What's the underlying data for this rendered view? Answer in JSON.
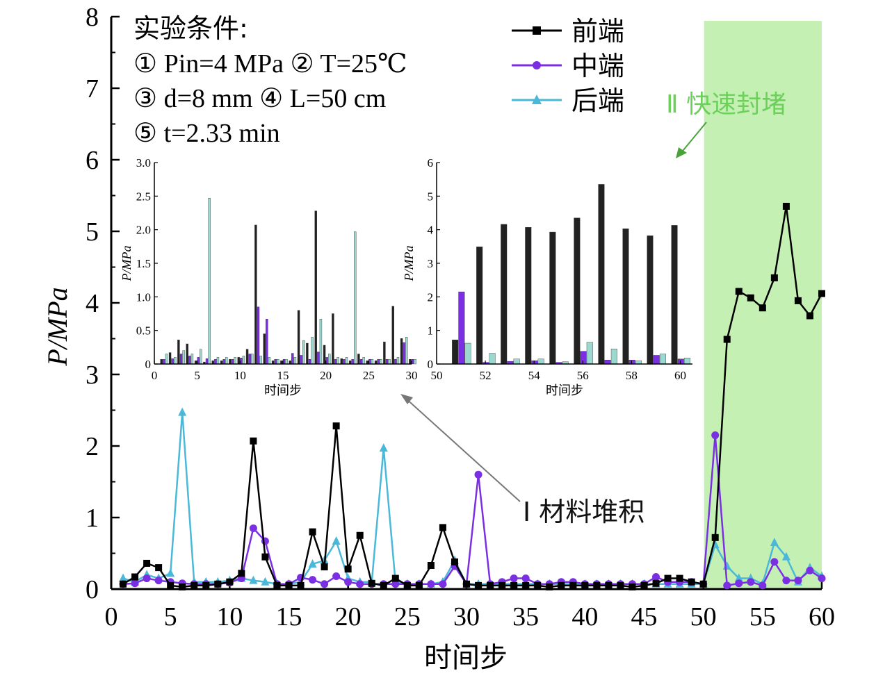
{
  "chart_data": [
    {
      "type": "line",
      "name": "main",
      "x": [
        1,
        2,
        3,
        4,
        5,
        6,
        7,
        8,
        9,
        10,
        11,
        12,
        13,
        14,
        15,
        16,
        17,
        18,
        19,
        20,
        21,
        22,
        23,
        24,
        25,
        26,
        27,
        28,
        29,
        30,
        31,
        32,
        33,
        34,
        35,
        36,
        37,
        38,
        39,
        40,
        41,
        42,
        43,
        44,
        45,
        46,
        47,
        48,
        49,
        50,
        51,
        52,
        53,
        54,
        55,
        56,
        57,
        58,
        59,
        60
      ],
      "xlabel": "时间步",
      "ylabel": "P/MPa",
      "xlim": [
        0,
        60
      ],
      "ylim": [
        0,
        8
      ],
      "xticks": [
        "0",
        "5",
        "10",
        "15",
        "20",
        "25",
        "30",
        "35",
        "40",
        "45",
        "50",
        "55",
        "60"
      ],
      "yticks": [
        "0",
        "1",
        "2",
        "3",
        "4",
        "5",
        "6",
        "7",
        "8"
      ],
      "series": [
        {
          "name": "前端",
          "color": "#000000",
          "marker": "square",
          "values": [
            0.07,
            0.17,
            0.36,
            0.3,
            0.05,
            0.03,
            0.05,
            0.05,
            0.07,
            0.1,
            0.22,
            2.07,
            0.45,
            0.05,
            0.05,
            0.05,
            0.8,
            0.31,
            2.28,
            0.28,
            0.75,
            0.08,
            0.05,
            0.15,
            0.05,
            0.05,
            0.33,
            0.86,
            0.38,
            0.07,
            0.05,
            0.05,
            0.05,
            0.05,
            0.05,
            0.05,
            0.03,
            0.05,
            0.05,
            0.05,
            0.05,
            0.05,
            0.05,
            0.03,
            0.05,
            0.08,
            0.15,
            0.15,
            0.1,
            0.07,
            0.72,
            3.49,
            4.16,
            4.07,
            3.93,
            4.35,
            5.35,
            4.03,
            3.82,
            4.13
          ]
        },
        {
          "name": "中端",
          "color": "#7b2fe3",
          "marker": "circle",
          "values": [
            0.07,
            0.08,
            0.15,
            0.12,
            0.1,
            0.08,
            0.07,
            0.07,
            0.07,
            0.09,
            0.15,
            0.85,
            0.67,
            0.07,
            0.07,
            0.16,
            0.13,
            0.07,
            0.18,
            0.1,
            0.07,
            0.07,
            0.07,
            0.07,
            0.07,
            0.07,
            0.07,
            0.07,
            0.32,
            0.07,
            1.6,
            0.07,
            0.1,
            0.15,
            0.15,
            0.07,
            0.07,
            0.1,
            0.1,
            0.07,
            0.07,
            0.07,
            0.07,
            0.07,
            0.07,
            0.17,
            0.1,
            0.1,
            0.1,
            0.07,
            2.15,
            0.05,
            0.08,
            0.1,
            0.05,
            0.38,
            0.12,
            0.12,
            0.26,
            0.15
          ]
        },
        {
          "name": "后端",
          "color": "#4ab8d8",
          "marker": "triangle",
          "values": [
            0.15,
            0.1,
            0.2,
            0.15,
            0.22,
            2.47,
            0.1,
            0.1,
            0.1,
            0.12,
            0.15,
            0.12,
            0.1,
            0.07,
            0.07,
            0.1,
            0.35,
            0.4,
            0.67,
            0.15,
            0.1,
            0.1,
            1.97,
            0.1,
            0.07,
            0.07,
            0.07,
            0.1,
            0.4,
            0.07,
            0.07,
            0.07,
            0.07,
            0.07,
            0.07,
            0.07,
            0.07,
            0.07,
            0.07,
            0.07,
            0.07,
            0.07,
            0.07,
            0.07,
            0.07,
            0.07,
            0.07,
            0.07,
            0.07,
            0.07,
            0.62,
            0.32,
            0.15,
            0.15,
            0.07,
            0.65,
            0.45,
            0.1,
            0.3,
            0.18
          ]
        }
      ],
      "legend": {
        "placement": "top-center",
        "entries": [
          "前端",
          "中端",
          "后端"
        ]
      },
      "highlight_region": {
        "x_range": [
          50,
          60
        ],
        "color": "#c4f0b4"
      },
      "annotations": [
        {
          "text": "Ⅰ 材料堆积"
        },
        {
          "text": "Ⅱ 快速封堵"
        }
      ],
      "conditions": {
        "title": "实验条件:",
        "lines": [
          "① Pin=4 MPa ② T=25℃",
          "③ d=8 mm ④ L=50 cm",
          "⑤ t=2.33 min"
        ]
      },
      "grid": false
    },
    {
      "type": "bar",
      "name": "inset-left",
      "xlabel": "时间步",
      "ylabel": "P/MPa",
      "xlim": [
        0,
        30
      ],
      "ylim": [
        0,
        3.0
      ],
      "xticks": [
        "0",
        "5",
        "10",
        "15",
        "20",
        "25",
        "30"
      ],
      "yticks": [
        "0",
        "0.5",
        "1.0",
        "1.5",
        "2.0",
        "2.5",
        "3.0"
      ],
      "series_colors": [
        "#222222",
        "#7b2fe3",
        "#9ad8d0"
      ]
    },
    {
      "type": "bar",
      "name": "inset-right",
      "xlabel": "时间步",
      "ylabel": "P/MPa",
      "xlim": [
        50,
        60.5
      ],
      "ylim": [
        0,
        6
      ],
      "xticks": [
        "50",
        "52",
        "54",
        "56",
        "58",
        "60"
      ],
      "yticks": [
        "0",
        "1",
        "2",
        "3",
        "4",
        "5",
        "6"
      ],
      "series_colors": [
        "#222222",
        "#7b2fe3",
        "#9ad8d0"
      ]
    }
  ]
}
